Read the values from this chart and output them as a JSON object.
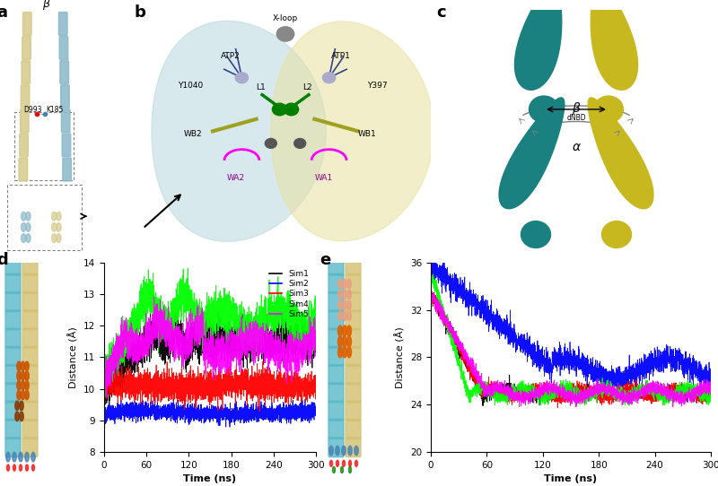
{
  "fig_width": 8.0,
  "fig_height": 5.42,
  "dpi": 100,
  "background": "#ffffff",
  "panel_label_fontsize": 13,
  "panel_label_fontweight": "bold",
  "plot_d": {
    "ylim": [
      8,
      14
    ],
    "xlim": [
      0,
      300
    ],
    "yticks": [
      8,
      9,
      10,
      11,
      12,
      13,
      14
    ],
    "xticks": [
      0,
      60,
      120,
      180,
      240,
      300
    ],
    "ylabel": "Distance (Å)",
    "xlabel": "Time (ns)",
    "legend_labels": [
      "Sim1",
      "Sim2",
      "Sim3",
      "Sim4",
      "Sim5"
    ],
    "legend_colors": [
      "black",
      "blue",
      "red",
      "lime",
      "magenta"
    ]
  },
  "plot_e": {
    "ylim": [
      20,
      36
    ],
    "xlim": [
      0,
      300
    ],
    "yticks": [
      20,
      24,
      28,
      32,
      36
    ],
    "xticks": [
      0,
      60,
      120,
      180,
      240,
      300
    ],
    "ylabel": "Distance (Å)",
    "xlabel": "Time (ns)",
    "legend_colors": [
      "black",
      "blue",
      "red",
      "lime",
      "magenta"
    ]
  },
  "teal_color": "#1a8080",
  "yellow_color": "#c8b820"
}
